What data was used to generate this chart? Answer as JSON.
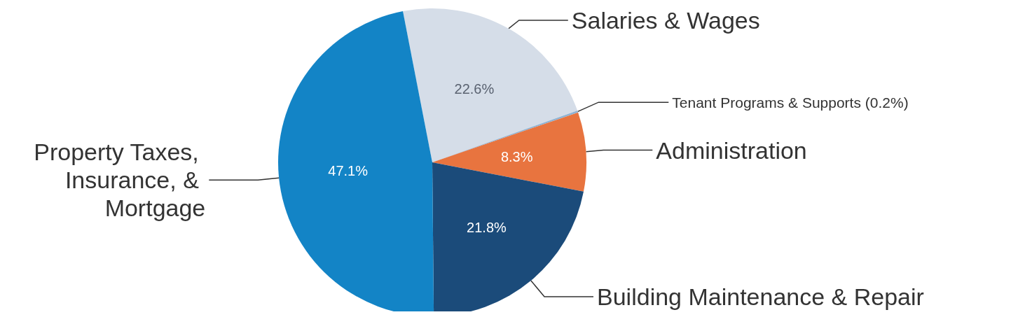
{
  "chart_data": {
    "type": "pie",
    "categories": [
      "Salaries & Wages",
      "Tenant Programs & Supports (0.2%)",
      "Administration",
      "Building Maintenance & Repair",
      "Property Taxes, Insurance, & Mortgage"
    ],
    "values": [
      22.6,
      0.2,
      8.3,
      21.8,
      47.1
    ],
    "colors": [
      "#d5dde8",
      "#8fb3d3",
      "#e8743f",
      "#1b4b7a",
      "#1384c6"
    ],
    "value_labels": [
      "22.6%",
      null,
      "8.3%",
      "21.8%",
      "47.1%"
    ],
    "legend": false
  }
}
